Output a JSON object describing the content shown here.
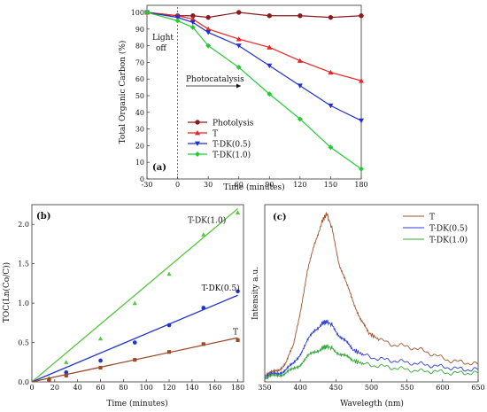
{
  "chart_data": [
    {
      "id": "a",
      "type": "line",
      "panel_label": "(a)",
      "xlabel": "Time (minutes)",
      "ylabel": "Total Organic Carbon (%)",
      "xlim": [
        -30,
        180
      ],
      "ylim": [
        0,
        100
      ],
      "xticks": [
        -30,
        0,
        30,
        60,
        90,
        120,
        150,
        180
      ],
      "yticks": [
        0,
        10,
        20,
        30,
        40,
        50,
        60,
        70,
        80,
        90,
        100
      ],
      "annotations": {
        "light_off_1": "Light",
        "light_off_2": "off",
        "photocatalysis": "Photocatalysis"
      },
      "legend_position": "bottom-left",
      "series": [
        {
          "name": "Photolysis",
          "color": "#8b1a1a",
          "marker": "circle",
          "x": [
            -30,
            0,
            15,
            30,
            60,
            90,
            120,
            150,
            180
          ],
          "y": [
            100,
            98,
            98,
            97,
            100,
            98,
            98,
            97,
            98
          ]
        },
        {
          "name": "T",
          "color": "#ee2222",
          "marker": "triangle-up",
          "x": [
            -30,
            0,
            15,
            30,
            60,
            90,
            120,
            150,
            180
          ],
          "y": [
            100,
            98,
            96,
            90,
            84,
            79,
            71,
            64,
            59
          ]
        },
        {
          "name": "T-DK(0.5)",
          "color": "#1f2fd0",
          "marker": "triangle-down",
          "x": [
            -30,
            0,
            15,
            30,
            60,
            90,
            120,
            150,
            180
          ],
          "y": [
            100,
            97,
            94,
            88,
            80,
            68,
            56,
            44,
            35
          ]
        },
        {
          "name": "T-DK(1.0)",
          "color": "#22cc33",
          "marker": "diamond",
          "x": [
            -30,
            0,
            15,
            30,
            60,
            90,
            120,
            150,
            180
          ],
          "y": [
            100,
            95,
            91,
            80,
            67,
            51,
            36,
            19,
            6
          ]
        }
      ]
    },
    {
      "id": "b",
      "type": "scatter",
      "panel_label": "(b)",
      "xlabel": "Time (minutes)",
      "ylabel": "TOC(Ln(Co/C))",
      "xlim": [
        0,
        185
      ],
      "ylim": [
        0,
        2.25
      ],
      "xticks": [
        0,
        20,
        40,
        60,
        80,
        100,
        120,
        140,
        160,
        180
      ],
      "yticks": [
        0.0,
        0.5,
        1.0,
        1.5,
        2.0
      ],
      "ytick_labels": [
        "0.0",
        "0.5",
        "1.0",
        "1.5",
        "2.0"
      ],
      "series": [
        {
          "name": "T-DK(1.0)",
          "color": "#55c53f",
          "marker": "triangle-up",
          "x": [
            15,
            30,
            60,
            90,
            120,
            150,
            180
          ],
          "y": [
            0.05,
            0.25,
            0.55,
            1.0,
            1.37,
            1.87,
            2.15
          ],
          "fit": {
            "x": [
              0,
              180
            ],
            "y": [
              0,
              2.2
            ]
          }
        },
        {
          "name": "T-DK(0.5)",
          "color": "#2233cc",
          "marker": "circle",
          "x": [
            15,
            30,
            60,
            90,
            120,
            150,
            180
          ],
          "y": [
            0.03,
            0.12,
            0.27,
            0.5,
            0.72,
            0.94,
            1.15
          ],
          "fit": {
            "x": [
              0,
              180
            ],
            "y": [
              0,
              1.1
            ]
          }
        },
        {
          "name": "T",
          "color": "#9b4a2a",
          "marker": "square",
          "x": [
            15,
            30,
            60,
            90,
            120,
            150,
            180
          ],
          "y": [
            0.02,
            0.08,
            0.18,
            0.28,
            0.38,
            0.48,
            0.53
          ],
          "fit": {
            "x": [
              0,
              180
            ],
            "y": [
              0,
              0.56
            ]
          }
        }
      ]
    },
    {
      "id": "c",
      "type": "line",
      "panel_label": "(c)",
      "xlabel": "Wavelegth (nm)",
      "ylabel": "Intensity a.u.",
      "xlim": [
        350,
        650
      ],
      "xticks": [
        350,
        400,
        450,
        500,
        550,
        600,
        650
      ],
      "ylim": [
        0,
        1
      ],
      "legend_position": "top-right",
      "series": [
        {
          "name": "T",
          "color": "#a0522d",
          "x": [
            350,
            360,
            370,
            380,
            390,
            400,
            410,
            420,
            430,
            437,
            445,
            455,
            465,
            475,
            485,
            495,
            510,
            530,
            550,
            570,
            590,
            610,
            630,
            650
          ],
          "y": [
            0.04,
            0.05,
            0.07,
            0.11,
            0.2,
            0.4,
            0.62,
            0.78,
            0.9,
            0.95,
            0.86,
            0.66,
            0.55,
            0.45,
            0.35,
            0.28,
            0.24,
            0.21,
            0.2,
            0.18,
            0.15,
            0.12,
            0.11,
            0.1
          ]
        },
        {
          "name": "T-DK(0.5)",
          "color": "#2b3dd6",
          "x": [
            350,
            360,
            370,
            380,
            390,
            400,
            410,
            420,
            430,
            437,
            445,
            455,
            465,
            475,
            490,
            510,
            530,
            550,
            570,
            590,
            610,
            630,
            650
          ],
          "y": [
            0.03,
            0.04,
            0.05,
            0.07,
            0.1,
            0.16,
            0.23,
            0.29,
            0.33,
            0.34,
            0.32,
            0.26,
            0.22,
            0.18,
            0.15,
            0.13,
            0.12,
            0.11,
            0.1,
            0.09,
            0.08,
            0.07,
            0.07
          ]
        },
        {
          "name": "T-DK(1.0)",
          "color": "#33a83a",
          "x": [
            350,
            360,
            370,
            380,
            390,
            400,
            410,
            420,
            430,
            437,
            445,
            455,
            465,
            475,
            490,
            510,
            530,
            550,
            570,
            590,
            610,
            630,
            650
          ],
          "y": [
            0.02,
            0.03,
            0.04,
            0.05,
            0.07,
            0.1,
            0.14,
            0.17,
            0.19,
            0.2,
            0.19,
            0.16,
            0.14,
            0.12,
            0.1,
            0.09,
            0.08,
            0.07,
            0.06,
            0.06,
            0.05,
            0.05,
            0.05
          ]
        }
      ]
    }
  ]
}
